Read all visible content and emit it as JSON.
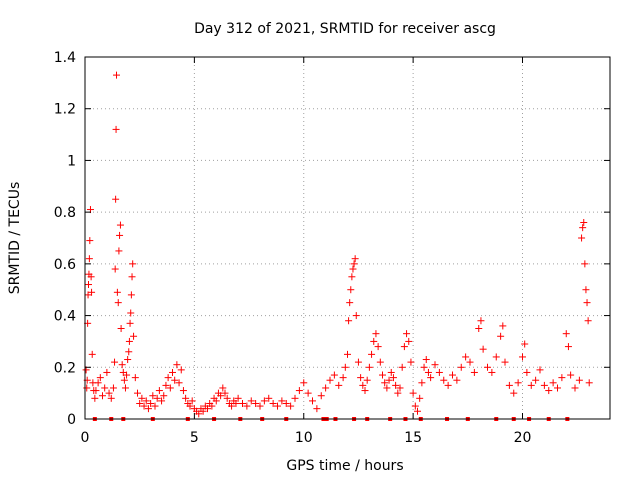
{
  "chart_data": {
    "type": "scatter",
    "title": "Day 312 of 2021, SRMTID for receiver ascg",
    "xlabel": "GPS time / hours",
    "ylabel": "SRMTID / TECUs",
    "xlim": [
      0,
      24
    ],
    "ylim": [
      0,
      1.4
    ],
    "xticks": [
      0,
      5,
      10,
      15,
      20
    ],
    "xtick_labels": [
      "0",
      "5",
      "10",
      "15",
      "20"
    ],
    "yticks": [
      0,
      0.2,
      0.4,
      0.6,
      0.8,
      1.0,
      1.2,
      1.4
    ],
    "ytick_labels": [
      "0",
      "0.2",
      "0.4",
      "0.6",
      "0.8",
      "1",
      "1.2",
      "1.4"
    ],
    "grid": true,
    "marker": "+",
    "color": "#ff0000",
    "series": [
      {
        "name": "SRMTID",
        "points": [
          [
            0.05,
            0.19
          ],
          [
            0.08,
            0.12
          ],
          [
            0.1,
            0.15
          ],
          [
            0.12,
            0.37
          ],
          [
            0.14,
            0.48
          ],
          [
            0.16,
            0.52
          ],
          [
            0.18,
            0.56
          ],
          [
            0.2,
            0.62
          ],
          [
            0.22,
            0.69
          ],
          [
            0.25,
            0.81
          ],
          [
            0.28,
            0.55
          ],
          [
            0.3,
            0.49
          ],
          [
            0.33,
            0.25
          ],
          [
            0.36,
            0.14
          ],
          [
            0.4,
            0.11
          ],
          [
            0.45,
            0.08
          ],
          [
            0.5,
            0.11
          ],
          [
            0.6,
            0.14
          ],
          [
            0.7,
            0.16
          ],
          [
            0.8,
            0.09
          ],
          [
            0.9,
            0.12
          ],
          [
            1.0,
            0.18
          ],
          [
            1.1,
            0.1
          ],
          [
            1.2,
            0.08
          ],
          [
            1.3,
            0.12
          ],
          [
            1.35,
            0.22
          ],
          [
            1.38,
            0.58
          ],
          [
            1.4,
            0.85
          ],
          [
            1.42,
            1.12
          ],
          [
            1.44,
            1.33
          ],
          [
            1.48,
            0.49
          ],
          [
            1.52,
            0.45
          ],
          [
            1.55,
            0.65
          ],
          [
            1.58,
            0.71
          ],
          [
            1.62,
            0.75
          ],
          [
            1.65,
            0.35
          ],
          [
            1.7,
            0.21
          ],
          [
            1.75,
            0.18
          ],
          [
            1.8,
            0.15
          ],
          [
            1.85,
            0.12
          ],
          [
            1.9,
            0.17
          ],
          [
            1.95,
            0.23
          ],
          [
            2.0,
            0.26
          ],
          [
            2.03,
            0.3
          ],
          [
            2.06,
            0.37
          ],
          [
            2.09,
            0.41
          ],
          [
            2.12,
            0.48
          ],
          [
            2.15,
            0.55
          ],
          [
            2.18,
            0.6
          ],
          [
            2.22,
            0.32
          ],
          [
            2.3,
            0.16
          ],
          [
            2.4,
            0.1
          ],
          [
            2.5,
            0.06
          ],
          [
            2.6,
            0.08
          ],
          [
            2.7,
            0.05
          ],
          [
            2.8,
            0.07
          ],
          [
            2.9,
            0.04
          ],
          [
            3.0,
            0.06
          ],
          [
            3.1,
            0.09
          ],
          [
            3.2,
            0.05
          ],
          [
            3.3,
            0.08
          ],
          [
            3.4,
            0.11
          ],
          [
            3.5,
            0.07
          ],
          [
            3.6,
            0.09
          ],
          [
            3.7,
            0.13
          ],
          [
            3.8,
            0.16
          ],
          [
            3.9,
            0.12
          ],
          [
            4.0,
            0.18
          ],
          [
            4.1,
            0.15
          ],
          [
            4.2,
            0.21
          ],
          [
            4.3,
            0.14
          ],
          [
            4.4,
            0.19
          ],
          [
            4.5,
            0.11
          ],
          [
            4.6,
            0.08
          ],
          [
            4.7,
            0.06
          ],
          [
            4.8,
            0.05
          ],
          [
            4.9,
            0.07
          ],
          [
            5.0,
            0.04
          ],
          [
            5.1,
            0.03
          ],
          [
            5.2,
            0.02
          ],
          [
            5.3,
            0.04
          ],
          [
            5.4,
            0.03
          ],
          [
            5.5,
            0.05
          ],
          [
            5.6,
            0.04
          ],
          [
            5.7,
            0.06
          ],
          [
            5.8,
            0.05
          ],
          [
            5.9,
            0.08
          ],
          [
            6.0,
            0.07
          ],
          [
            6.1,
            0.1
          ],
          [
            6.2,
            0.09
          ],
          [
            6.3,
            0.12
          ],
          [
            6.4,
            0.1
          ],
          [
            6.5,
            0.08
          ],
          [
            6.6,
            0.06
          ],
          [
            6.7,
            0.05
          ],
          [
            6.8,
            0.07
          ],
          [
            6.9,
            0.06
          ],
          [
            7.0,
            0.08
          ],
          [
            7.2,
            0.06
          ],
          [
            7.4,
            0.05
          ],
          [
            7.6,
            0.07
          ],
          [
            7.8,
            0.06
          ],
          [
            8.0,
            0.05
          ],
          [
            8.2,
            0.07
          ],
          [
            8.4,
            0.08
          ],
          [
            8.6,
            0.06
          ],
          [
            8.8,
            0.05
          ],
          [
            9.0,
            0.07
          ],
          [
            9.2,
            0.06
          ],
          [
            9.4,
            0.05
          ],
          [
            9.6,
            0.08
          ],
          [
            9.8,
            0.11
          ],
          [
            10.0,
            0.14
          ],
          [
            10.2,
            0.1
          ],
          [
            10.4,
            0.07
          ],
          [
            10.6,
            0.04
          ],
          [
            10.8,
            0.09
          ],
          [
            11.0,
            0.12
          ],
          [
            11.2,
            0.15
          ],
          [
            11.4,
            0.17
          ],
          [
            11.6,
            0.13
          ],
          [
            11.8,
            0.16
          ],
          [
            11.9,
            0.2
          ],
          [
            12.0,
            0.25
          ],
          [
            12.05,
            0.38
          ],
          [
            12.1,
            0.45
          ],
          [
            12.15,
            0.5
          ],
          [
            12.2,
            0.55
          ],
          [
            12.25,
            0.58
          ],
          [
            12.3,
            0.6
          ],
          [
            12.35,
            0.62
          ],
          [
            12.4,
            0.4
          ],
          [
            12.5,
            0.22
          ],
          [
            12.6,
            0.16
          ],
          [
            12.7,
            0.13
          ],
          [
            12.8,
            0.11
          ],
          [
            12.9,
            0.15
          ],
          [
            13.0,
            0.2
          ],
          [
            13.1,
            0.25
          ],
          [
            13.2,
            0.3
          ],
          [
            13.3,
            0.33
          ],
          [
            13.4,
            0.28
          ],
          [
            13.5,
            0.22
          ],
          [
            13.6,
            0.17
          ],
          [
            13.7,
            0.14
          ],
          [
            13.8,
            0.12
          ],
          [
            13.9,
            0.15
          ],
          [
            14.0,
            0.18
          ],
          [
            14.1,
            0.16
          ],
          [
            14.2,
            0.13
          ],
          [
            14.3,
            0.1
          ],
          [
            14.4,
            0.12
          ],
          [
            14.5,
            0.2
          ],
          [
            14.6,
            0.28
          ],
          [
            14.7,
            0.33
          ],
          [
            14.8,
            0.3
          ],
          [
            14.9,
            0.22
          ],
          [
            15.0,
            0.1
          ],
          [
            15.1,
            0.05
          ],
          [
            15.2,
            0.03
          ],
          [
            15.3,
            0.08
          ],
          [
            15.4,
            0.14
          ],
          [
            15.5,
            0.2
          ],
          [
            15.6,
            0.23
          ],
          [
            15.7,
            0.18
          ],
          [
            15.8,
            0.16
          ],
          [
            16.0,
            0.21
          ],
          [
            16.2,
            0.18
          ],
          [
            16.4,
            0.15
          ],
          [
            16.6,
            0.13
          ],
          [
            16.8,
            0.17
          ],
          [
            17.0,
            0.15
          ],
          [
            17.2,
            0.2
          ],
          [
            17.4,
            0.24
          ],
          [
            17.6,
            0.22
          ],
          [
            17.8,
            0.18
          ],
          [
            18.0,
            0.35
          ],
          [
            18.1,
            0.38
          ],
          [
            18.2,
            0.27
          ],
          [
            18.4,
            0.2
          ],
          [
            18.6,
            0.18
          ],
          [
            18.8,
            0.24
          ],
          [
            19.0,
            0.32
          ],
          [
            19.1,
            0.36
          ],
          [
            19.2,
            0.22
          ],
          [
            19.4,
            0.13
          ],
          [
            19.6,
            0.1
          ],
          [
            19.8,
            0.14
          ],
          [
            20.0,
            0.24
          ],
          [
            20.1,
            0.29
          ],
          [
            20.2,
            0.18
          ],
          [
            20.4,
            0.13
          ],
          [
            20.6,
            0.15
          ],
          [
            20.8,
            0.19
          ],
          [
            21.0,
            0.13
          ],
          [
            21.2,
            0.11
          ],
          [
            21.4,
            0.14
          ],
          [
            21.6,
            0.12
          ],
          [
            21.8,
            0.16
          ],
          [
            22.0,
            0.33
          ],
          [
            22.1,
            0.28
          ],
          [
            22.2,
            0.17
          ],
          [
            22.4,
            0.12
          ],
          [
            22.6,
            0.15
          ],
          [
            22.7,
            0.7
          ],
          [
            22.75,
            0.74
          ],
          [
            22.8,
            0.76
          ],
          [
            22.85,
            0.6
          ],
          [
            22.9,
            0.5
          ],
          [
            22.95,
            0.45
          ],
          [
            23.0,
            0.38
          ],
          [
            23.05,
            0.14
          ]
        ]
      }
    ],
    "zero_markers_x": [
      0.45,
      1.2,
      1.75,
      3.1,
      4.7,
      5.9,
      7.1,
      8.1,
      9.2,
      10.9,
      11.05,
      11.45,
      12.3,
      12.9,
      13.95,
      14.65,
      15.35,
      16.55,
      17.5,
      18.8,
      19.6,
      20.3,
      21.2,
      22.05
    ]
  }
}
